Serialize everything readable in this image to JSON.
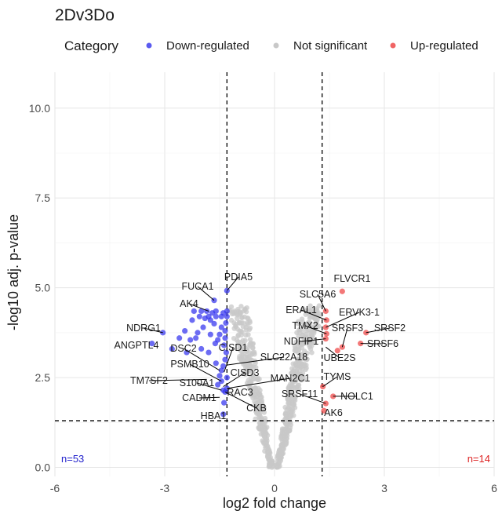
{
  "chart_data": {
    "type": "scatter",
    "title": "2Dv3Do",
    "xlabel": "log2 fold change",
    "ylabel": "-log10 adj. p-value",
    "xlim": [
      -6,
      6
    ],
    "ylim": [
      -0.25,
      11
    ],
    "x_ticks": [
      "-6",
      "-3",
      "0",
      "3",
      "6"
    ],
    "y_ticks": [
      "0.0",
      "2.5",
      "5.0",
      "7.5",
      "10.0"
    ],
    "grid": true,
    "legend": {
      "title": "Category",
      "placement": "top",
      "items": [
        {
          "label": "Down-regulated",
          "color": "#5B5BF0"
        },
        {
          "label": "Not significant",
          "color": "#C8C8C8"
        },
        {
          "label": "Up-regulated",
          "color": "#F06464"
        }
      ]
    },
    "thresholds": {
      "fc_lines": [
        -1.3,
        1.3
      ],
      "p_line": 1.3
    },
    "counts": [
      {
        "label": "n=53",
        "color": "#2222cc",
        "corner": "bottom-left"
      },
      {
        "label": "n=14",
        "color": "#dd2222",
        "corner": "bottom-right"
      }
    ],
    "series": [
      {
        "name": "Down-regulated",
        "color": "#3333ee",
        "points": [
          [
            -1.3,
            4.92
          ],
          [
            -1.3,
            4.35
          ],
          [
            -1.3,
            4.2
          ],
          [
            -1.33,
            4.02
          ],
          [
            -1.35,
            3.8
          ],
          [
            -1.35,
            3.6
          ],
          [
            -1.4,
            4.3
          ],
          [
            -1.45,
            4.2
          ],
          [
            -1.45,
            3.9
          ],
          [
            -1.5,
            3.7
          ],
          [
            -1.38,
            3.4
          ],
          [
            -1.32,
            3.2
          ],
          [
            -1.35,
            3.0
          ],
          [
            -1.4,
            2.82
          ],
          [
            -1.45,
            2.7
          ],
          [
            -1.6,
            4.35
          ],
          [
            -1.6,
            4.2
          ],
          [
            -1.65,
            4.0
          ],
          [
            -1.7,
            4.3
          ],
          [
            -1.75,
            4.1
          ],
          [
            -1.75,
            3.7
          ],
          [
            -1.8,
            4.2
          ],
          [
            -1.85,
            4.35
          ],
          [
            -1.9,
            4.15
          ],
          [
            -1.95,
            3.9
          ],
          [
            -2.0,
            4.35
          ],
          [
            -2.05,
            4.2
          ],
          [
            -2.1,
            3.75
          ],
          [
            -2.15,
            3.6
          ],
          [
            -2.2,
            4.35
          ],
          [
            -2.25,
            4.1
          ],
          [
            -2.3,
            3.55
          ],
          [
            -2.4,
            3.2
          ],
          [
            -2.45,
            3.8
          ],
          [
            -2.6,
            3.6
          ],
          [
            -2.8,
            3.3
          ],
          [
            -3.05,
            3.75
          ],
          [
            -3.35,
            3.45
          ],
          [
            -1.65,
            4.65
          ],
          [
            -1.55,
            3.55
          ],
          [
            -1.8,
            3.2
          ],
          [
            -2.0,
            3.3
          ],
          [
            -1.6,
            2.9
          ],
          [
            -1.5,
            2.55
          ],
          [
            -1.45,
            2.4
          ],
          [
            -1.4,
            2.15
          ],
          [
            -1.35,
            2.1
          ],
          [
            -1.3,
            2.2
          ],
          [
            -1.38,
            1.8
          ],
          [
            -1.4,
            1.48
          ],
          [
            -1.3,
            2.5
          ],
          [
            -1.55,
            2.3
          ],
          [
            -1.62,
            3.45
          ]
        ]
      },
      {
        "name": "Up-regulated",
        "color": "#ee4444",
        "points": [
          [
            1.85,
            4.9
          ],
          [
            1.4,
            4.35
          ],
          [
            1.42,
            4.1
          ],
          [
            1.4,
            3.9
          ],
          [
            1.42,
            3.72
          ],
          [
            1.4,
            3.58
          ],
          [
            2.5,
            3.75
          ],
          [
            2.35,
            3.45
          ],
          [
            1.85,
            3.35
          ],
          [
            1.72,
            3.25
          ],
          [
            1.6,
            1.98
          ],
          [
            1.4,
            1.78
          ],
          [
            1.32,
            2.25
          ],
          [
            1.35,
            1.58
          ]
        ]
      }
    ],
    "labels": [
      {
        "text": "PDIA5",
        "x": -1.3,
        "y": 4.92
      },
      {
        "text": "FUCA1",
        "x": -1.65,
        "y": 4.65
      },
      {
        "text": "AK4",
        "x": -1.8,
        "y": 4.35
      },
      {
        "text": "NDRG1",
        "x": -3.05,
        "y": 3.75
      },
      {
        "text": "ANGPTL4",
        "x": -3.35,
        "y": 3.45
      },
      {
        "text": "DSC2",
        "x": -1.5,
        "y": 2.7
      },
      {
        "text": "CISD1",
        "x": -1.38,
        "y": 2.65
      },
      {
        "text": "SLC22A18",
        "x": -1.3,
        "y": 2.85
      },
      {
        "text": "PSMB10",
        "x": -1.45,
        "y": 2.4
      },
      {
        "text": "CISD3",
        "x": -1.4,
        "y": 2.25
      },
      {
        "text": "TM7SF2",
        "x": -1.85,
        "y": 2.45
      },
      {
        "text": "S100A1",
        "x": -1.45,
        "y": 2.15
      },
      {
        "text": "MAN2C1",
        "x": -1.3,
        "y": 2.2
      },
      {
        "text": "CADM1",
        "x": -1.5,
        "y": 1.95
      },
      {
        "text": "RAC3",
        "x": -1.38,
        "y": 2.0
      },
      {
        "text": "CKB",
        "x": -1.35,
        "y": 2.1
      },
      {
        "text": "HBA1",
        "x": -1.4,
        "y": 1.48
      },
      {
        "text": "FLVCR1",
        "x": 1.85,
        "y": 4.9
      },
      {
        "text": "SLC5A6",
        "x": 1.4,
        "y": 4.35
      },
      {
        "text": "ERAL1",
        "x": 1.42,
        "y": 4.1
      },
      {
        "text": "ERVK3-1",
        "x": 1.4,
        "y": 3.9
      },
      {
        "text": "TMX2",
        "x": 1.42,
        "y": 3.72
      },
      {
        "text": "SRSF3",
        "x": 1.85,
        "y": 3.35
      },
      {
        "text": "SRSF2",
        "x": 2.5,
        "y": 3.75
      },
      {
        "text": "SRSF6",
        "x": 2.35,
        "y": 3.45
      },
      {
        "text": "NDFIP1",
        "x": 1.4,
        "y": 3.58
      },
      {
        "text": "UBE2S",
        "x": 1.4,
        "y": 3.35
      },
      {
        "text": "TYMS",
        "x": 1.32,
        "y": 2.25
      },
      {
        "text": "SRSF11",
        "x": 1.4,
        "y": 1.78
      },
      {
        "text": "NOLC1",
        "x": 1.6,
        "y": 1.98
      },
      {
        "text": "AK6",
        "x": 1.35,
        "y": 1.58
      }
    ]
  }
}
